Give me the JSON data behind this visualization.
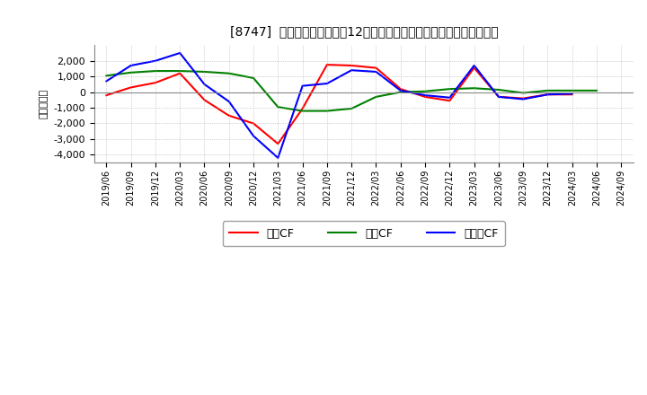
{
  "title": "[8747]  キャッシュフローの12か月移動合計の対前年同期増減額の推移",
  "ylabel": "（百万円）",
  "background_color": "#ffffff",
  "grid_color": "#aaaaaa",
  "ylim": [
    -4500,
    3000
  ],
  "yticks": [
    -4000,
    -3000,
    -2000,
    -1000,
    0,
    1000,
    2000
  ],
  "legend_labels": [
    "営業CF",
    "投資CF",
    "フリーCF"
  ],
  "legend_colors": [
    "#ff0000",
    "#008000",
    "#0000ff"
  ],
  "x_labels": [
    "2019/06",
    "2019/09",
    "2019/12",
    "2020/03",
    "2020/06",
    "2020/09",
    "2020/12",
    "2021/03",
    "2021/06",
    "2021/09",
    "2021/12",
    "2022/03",
    "2022/06",
    "2022/09",
    "2022/12",
    "2023/03",
    "2023/06",
    "2023/09",
    "2023/12",
    "2024/03",
    "2024/06",
    "2024/09"
  ],
  "eigyo_cf": [
    -200,
    300,
    600,
    1200,
    -500,
    -1500,
    -2000,
    -3300,
    -1050,
    1750,
    1700,
    1550,
    200,
    -300,
    -550,
    1550,
    -300,
    -400,
    -150,
    -150,
    null,
    null
  ],
  "toshi_cf": [
    1050,
    1250,
    1350,
    1350,
    1300,
    1200,
    900,
    -950,
    -1200,
    -1200,
    -1050,
    -300,
    0,
    50,
    200,
    250,
    150,
    -50,
    100,
    100,
    100,
    null
  ],
  "free_cf": [
    700,
    1700,
    2000,
    2500,
    500,
    -600,
    -2800,
    -4200,
    400,
    550,
    1400,
    1300,
    100,
    -200,
    -350,
    1700,
    -300,
    -450,
    -150,
    -100,
    null,
    null
  ]
}
